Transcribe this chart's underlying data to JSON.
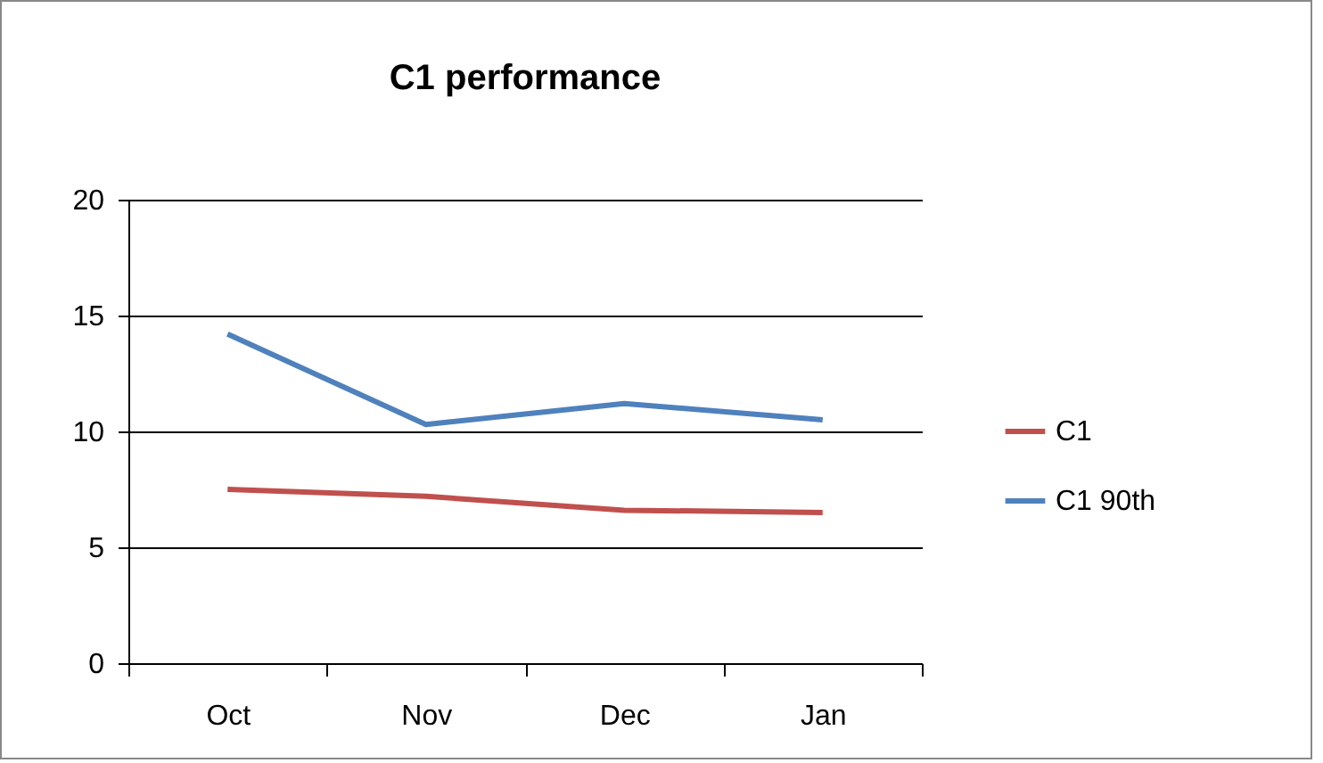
{
  "chart_data": {
    "type": "line",
    "title": "C1 performance",
    "categories": [
      "Oct",
      "Nov",
      "Dec",
      "Jan"
    ],
    "series": [
      {
        "name": "C1",
        "color": "#c0504d",
        "values": [
          7.5,
          7.2,
          6.6,
          6.5
        ]
      },
      {
        "name": "C1 90th",
        "color": "#4f81bd",
        "values": [
          14.2,
          10.3,
          11.2,
          10.5
        ]
      }
    ],
    "ylim": [
      0,
      20
    ],
    "yticks": [
      0,
      5,
      10,
      15,
      20
    ],
    "grid": "y",
    "legend": "right",
    "marker": "none"
  }
}
